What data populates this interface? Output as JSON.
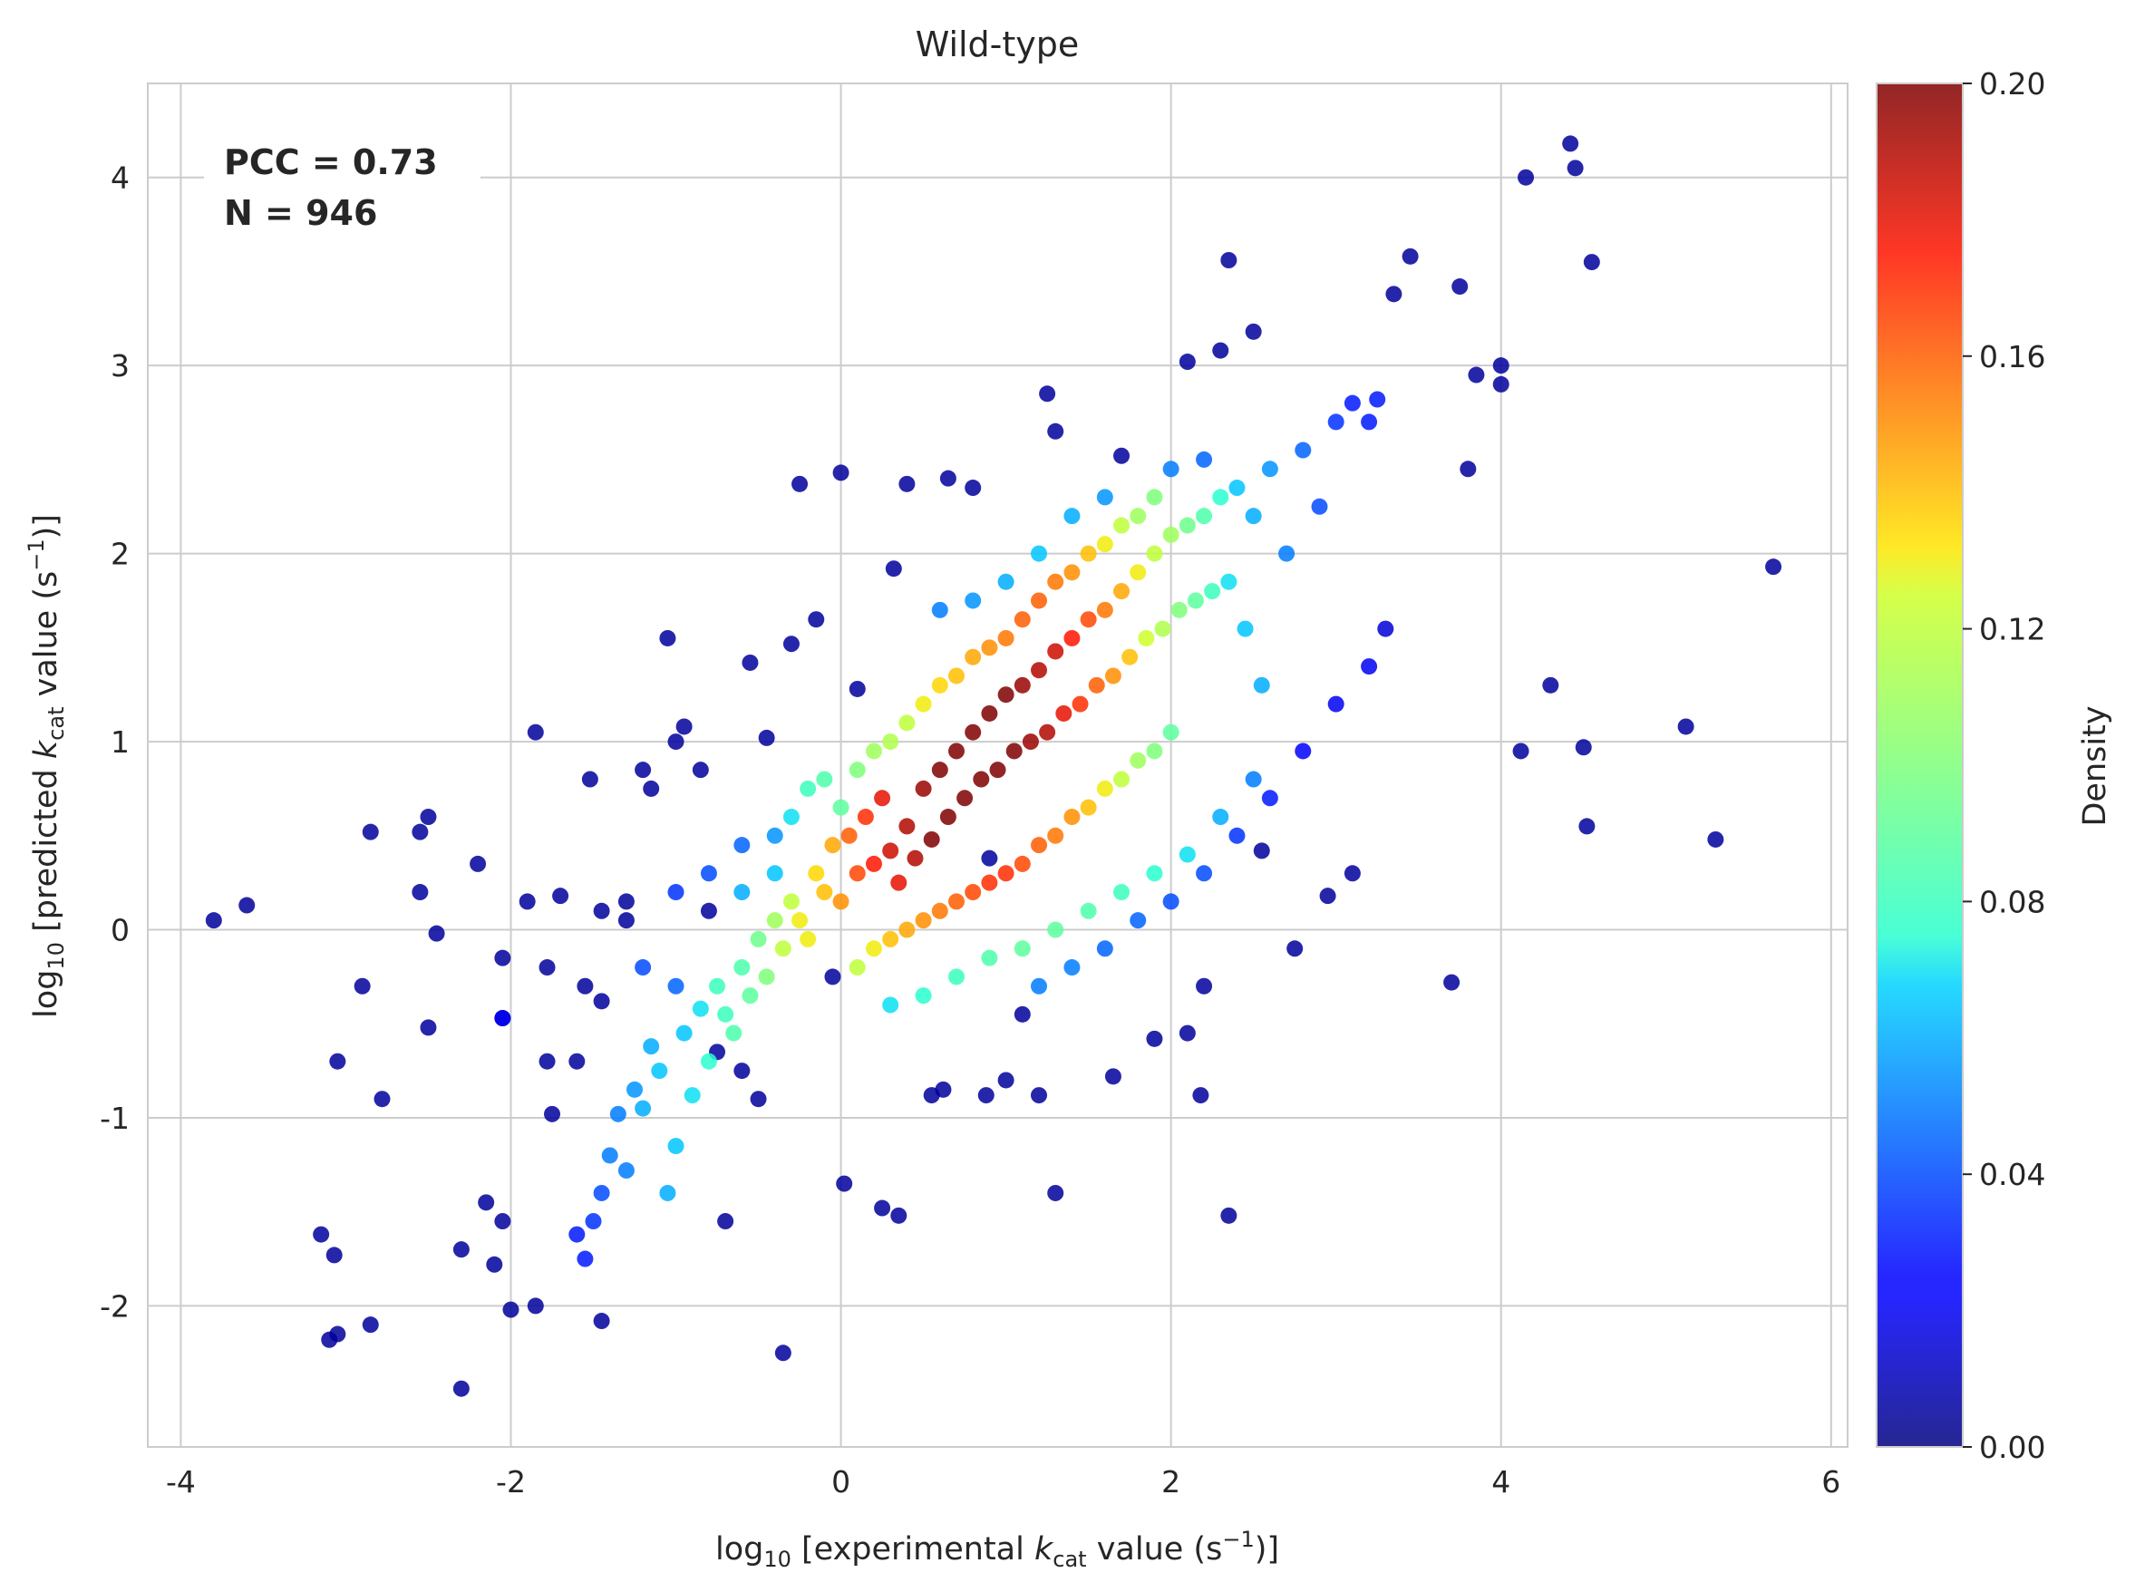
{
  "chart_data": {
    "type": "scatter",
    "title": "Wild-type",
    "xlabel": {
      "prefix": "log",
      "sub": "10",
      "main": " [experimental ",
      "k": "k",
      "ksub": "cat",
      "unit": " value (s",
      "sup": "−1",
      "close": ")]"
    },
    "ylabel": {
      "prefix": "log",
      "sub": "10",
      "main": " [predicted ",
      "k": "k",
      "ksub": "cat",
      "unit": " value (s",
      "sup": "−1",
      "close": ")]"
    },
    "xlim": [
      -4.2,
      6.1
    ],
    "ylim": [
      -2.75,
      4.5
    ],
    "xticks": [
      -4,
      -2,
      0,
      2,
      4,
      6
    ],
    "xtick_labels": [
      "-4",
      "-2",
      "0",
      "2",
      "4",
      "6"
    ],
    "yticks": [
      -2,
      -1,
      0,
      1,
      2,
      3,
      4
    ],
    "ytick_labels": [
      "-2",
      "-1",
      "0",
      "1",
      "2",
      "3",
      "4"
    ],
    "grid": true,
    "annotations": {
      "pcc": "PCC = 0.73",
      "n": "N = 946"
    },
    "colorbar": {
      "label": "Density",
      "min": 0.0,
      "max": 0.2,
      "ticks": [
        "0.00",
        "0.04",
        "0.08",
        "0.12",
        "0.16",
        "0.20"
      ],
      "colormap": "jet"
    },
    "points": [
      [
        -3.8,
        0.05,
        0.005
      ],
      [
        -3.6,
        0.13,
        0.005
      ],
      [
        -3.15,
        -1.62,
        0.005
      ],
      [
        -3.1,
        -2.18,
        0.005
      ],
      [
        -3.07,
        -1.73,
        0.005
      ],
      [
        -3.05,
        -2.15,
        0.005
      ],
      [
        -3.05,
        -0.7,
        0.005
      ],
      [
        -2.9,
        -0.3,
        0.005
      ],
      [
        -2.85,
        0.52,
        0.005
      ],
      [
        -2.85,
        -2.1,
        0.005
      ],
      [
        -2.78,
        -0.9,
        0.005
      ],
      [
        -2.55,
        0.52,
        0.005
      ],
      [
        -2.55,
        0.2,
        0.005
      ],
      [
        -2.5,
        -0.52,
        0.005
      ],
      [
        -2.5,
        0.6,
        0.005
      ],
      [
        -2.45,
        -0.02,
        0.005
      ],
      [
        -2.3,
        -2.44,
        0.005
      ],
      [
        -2.3,
        -1.7,
        0.005
      ],
      [
        -2.2,
        0.35,
        0.005
      ],
      [
        -2.15,
        -1.45,
        0.005
      ],
      [
        -2.1,
        -1.78,
        0.005
      ],
      [
        -2.05,
        -0.47,
        0.005
      ],
      [
        -2.05,
        -1.55,
        0.005
      ],
      [
        -2.05,
        -0.15,
        0.005
      ],
      [
        -2.0,
        -2.02,
        0.005
      ],
      [
        -1.9,
        0.15,
        0.005
      ],
      [
        -1.85,
        1.05,
        0.005
      ],
      [
        -1.85,
        -2.0,
        0.005
      ],
      [
        -1.78,
        -0.7,
        0.005
      ],
      [
        -1.78,
        -0.2,
        0.005
      ],
      [
        -1.75,
        -0.98,
        0.005
      ],
      [
        -1.7,
        0.18,
        0.005
      ],
      [
        -1.6,
        -0.7,
        0.005
      ],
      [
        -1.55,
        -0.3,
        0.005
      ],
      [
        -1.52,
        0.8,
        0.005
      ],
      [
        -1.45,
        -0.38,
        0.005
      ],
      [
        -1.45,
        -2.08,
        0.005
      ],
      [
        -1.45,
        0.1,
        0.005
      ],
      [
        -1.3,
        0.15,
        0.005
      ],
      [
        -1.3,
        0.05,
        0.005
      ],
      [
        -1.2,
        0.85,
        0.005
      ],
      [
        -1.15,
        0.75,
        0.005
      ],
      [
        -1.05,
        1.55,
        0.005
      ],
      [
        -1.0,
        1.0,
        0.005
      ],
      [
        -0.95,
        1.08,
        0.005
      ],
      [
        -0.85,
        0.85,
        0.005
      ],
      [
        -0.8,
        0.1,
        0.005
      ],
      [
        -0.75,
        -0.65,
        0.005
      ],
      [
        -0.7,
        -1.55,
        0.005
      ],
      [
        -0.6,
        -0.75,
        0.005
      ],
      [
        -0.55,
        1.42,
        0.005
      ],
      [
        -0.5,
        -0.9,
        0.005
      ],
      [
        -0.45,
        1.02,
        0.005
      ],
      [
        -0.35,
        -2.25,
        0.005
      ],
      [
        -0.3,
        1.52,
        0.005
      ],
      [
        -0.25,
        2.37,
        0.005
      ],
      [
        -0.15,
        1.65,
        0.005
      ],
      [
        -0.05,
        -0.25,
        0.005
      ],
      [
        0.0,
        2.43,
        0.005
      ],
      [
        0.02,
        -1.35,
        0.005
      ],
      [
        0.1,
        1.28,
        0.005
      ],
      [
        0.25,
        -1.48,
        0.005
      ],
      [
        0.32,
        1.92,
        0.005
      ],
      [
        0.35,
        -1.52,
        0.005
      ],
      [
        0.4,
        2.37,
        0.005
      ],
      [
        0.55,
        -0.88,
        0.005
      ],
      [
        0.62,
        -0.85,
        0.005
      ],
      [
        0.65,
        2.4,
        0.005
      ],
      [
        0.8,
        2.35,
        0.005
      ],
      [
        0.88,
        -0.88,
        0.005
      ],
      [
        0.9,
        0.38,
        0.005
      ],
      [
        1.0,
        -0.8,
        0.005
      ],
      [
        1.1,
        -0.45,
        0.005
      ],
      [
        1.2,
        -0.88,
        0.005
      ],
      [
        1.25,
        2.85,
        0.005
      ],
      [
        1.3,
        -1.4,
        0.005
      ],
      [
        1.3,
        2.65,
        0.005
      ],
      [
        1.65,
        -0.78,
        0.005
      ],
      [
        1.7,
        2.52,
        0.005
      ],
      [
        1.9,
        -0.58,
        0.005
      ],
      [
        2.1,
        3.02,
        0.005
      ],
      [
        2.1,
        -0.55,
        0.005
      ],
      [
        2.18,
        -0.88,
        0.005
      ],
      [
        2.2,
        -0.3,
        0.005
      ],
      [
        2.3,
        3.08,
        0.005
      ],
      [
        2.35,
        3.56,
        0.005
      ],
      [
        2.35,
        -1.52,
        0.005
      ],
      [
        2.5,
        3.18,
        0.005
      ],
      [
        2.55,
        0.42,
        0.005
      ],
      [
        2.75,
        -0.1,
        0.005
      ],
      [
        2.95,
        0.18,
        0.005
      ],
      [
        3.1,
        0.3,
        0.005
      ],
      [
        3.35,
        3.38,
        0.005
      ],
      [
        3.45,
        3.58,
        0.005
      ],
      [
        3.7,
        -0.28,
        0.005
      ],
      [
        3.75,
        3.42,
        0.005
      ],
      [
        3.8,
        2.45,
        0.005
      ],
      [
        3.85,
        2.95,
        0.005
      ],
      [
        4.0,
        3.0,
        0.005
      ],
      [
        4.0,
        2.9,
        0.005
      ],
      [
        4.12,
        0.95,
        0.005
      ],
      [
        4.15,
        4.0,
        0.005
      ],
      [
        4.3,
        1.3,
        0.005
      ],
      [
        4.42,
        4.18,
        0.005
      ],
      [
        4.45,
        4.05,
        0.005
      ],
      [
        4.5,
        0.97,
        0.005
      ],
      [
        4.52,
        0.55,
        0.005
      ],
      [
        4.55,
        3.55,
        0.005
      ],
      [
        5.12,
        1.08,
        0.005
      ],
      [
        5.3,
        0.48,
        0.005
      ],
      [
        5.65,
        1.93,
        0.005
      ],
      [
        -2.05,
        -0.47,
        0.02
      ],
      [
        -1.6,
        -1.62,
        0.03
      ],
      [
        -1.55,
        -1.75,
        0.03
      ],
      [
        -1.5,
        -1.55,
        0.035
      ],
      [
        -1.45,
        -1.4,
        0.04
      ],
      [
        -1.4,
        -1.2,
        0.05
      ],
      [
        -1.35,
        -0.98,
        0.05
      ],
      [
        -1.3,
        -1.28,
        0.05
      ],
      [
        -1.25,
        -0.85,
        0.055
      ],
      [
        -1.2,
        -0.95,
        0.06
      ],
      [
        -1.15,
        -0.62,
        0.06
      ],
      [
        -1.1,
        -0.75,
        0.065
      ],
      [
        -1.05,
        -1.4,
        0.06
      ],
      [
        -1.0,
        -1.15,
        0.065
      ],
      [
        -0.95,
        -0.55,
        0.065
      ],
      [
        -0.9,
        -0.88,
        0.07
      ],
      [
        -0.85,
        -0.42,
        0.07
      ],
      [
        -0.8,
        -0.7,
        0.075
      ],
      [
        -0.75,
        -0.3,
        0.08
      ],
      [
        -0.7,
        -0.45,
        0.08
      ],
      [
        -0.65,
        -0.55,
        0.085
      ],
      [
        -0.6,
        -0.2,
        0.085
      ],
      [
        -0.55,
        -0.35,
        0.09
      ],
      [
        -0.5,
        -0.05,
        0.095
      ],
      [
        -0.45,
        -0.25,
        0.1
      ],
      [
        -0.4,
        0.05,
        0.11
      ],
      [
        -0.35,
        -0.1,
        0.12
      ],
      [
        -0.3,
        0.15,
        0.12
      ],
      [
        -0.25,
        0.05,
        0.13
      ],
      [
        -0.2,
        -0.05,
        0.13
      ],
      [
        -0.15,
        0.3,
        0.135
      ],
      [
        -0.1,
        0.2,
        0.14
      ],
      [
        -0.05,
        0.45,
        0.145
      ],
      [
        0.0,
        0.15,
        0.15
      ],
      [
        0.05,
        0.5,
        0.16
      ],
      [
        0.1,
        0.3,
        0.165
      ],
      [
        0.15,
        0.6,
        0.17
      ],
      [
        0.2,
        0.35,
        0.175
      ],
      [
        0.25,
        0.7,
        0.18
      ],
      [
        0.3,
        0.42,
        0.185
      ],
      [
        0.35,
        0.25,
        0.18
      ],
      [
        0.4,
        0.55,
        0.19
      ],
      [
        0.45,
        0.38,
        0.19
      ],
      [
        0.5,
        0.75,
        0.195
      ],
      [
        0.55,
        0.48,
        0.2
      ],
      [
        0.6,
        0.85,
        0.2
      ],
      [
        0.65,
        0.6,
        0.2
      ],
      [
        0.7,
        0.95,
        0.2
      ],
      [
        0.75,
        0.7,
        0.2
      ],
      [
        0.8,
        1.05,
        0.2
      ],
      [
        0.85,
        0.8,
        0.2
      ],
      [
        0.9,
        1.15,
        0.2
      ],
      [
        0.95,
        0.85,
        0.2
      ],
      [
        1.0,
        1.25,
        0.2
      ],
      [
        1.05,
        0.95,
        0.2
      ],
      [
        1.1,
        1.3,
        0.195
      ],
      [
        1.15,
        1.0,
        0.195
      ],
      [
        1.2,
        1.38,
        0.19
      ],
      [
        1.25,
        1.05,
        0.19
      ],
      [
        1.3,
        1.48,
        0.185
      ],
      [
        1.35,
        1.15,
        0.18
      ],
      [
        1.4,
        1.55,
        0.175
      ],
      [
        1.45,
        1.2,
        0.17
      ],
      [
        1.5,
        1.65,
        0.165
      ],
      [
        1.55,
        1.3,
        0.16
      ],
      [
        1.6,
        1.7,
        0.155
      ],
      [
        1.65,
        1.35,
        0.15
      ],
      [
        1.7,
        1.8,
        0.145
      ],
      [
        1.75,
        1.45,
        0.14
      ],
      [
        1.8,
        1.9,
        0.13
      ],
      [
        1.85,
        1.55,
        0.125
      ],
      [
        1.9,
        2.0,
        0.12
      ],
      [
        1.95,
        1.6,
        0.115
      ],
      [
        2.0,
        2.1,
        0.11
      ],
      [
        2.05,
        1.7,
        0.1
      ],
      [
        2.1,
        2.15,
        0.095
      ],
      [
        2.15,
        1.75,
        0.09
      ],
      [
        2.2,
        2.2,
        0.085
      ],
      [
        2.25,
        1.8,
        0.08
      ],
      [
        2.3,
        2.3,
        0.075
      ],
      [
        2.35,
        1.85,
        0.07
      ],
      [
        2.4,
        2.35,
        0.065
      ],
      [
        2.45,
        1.6,
        0.065
      ],
      [
        2.5,
        2.2,
        0.06
      ],
      [
        2.55,
        1.3,
        0.06
      ],
      [
        2.6,
        2.45,
        0.055
      ],
      [
        2.7,
        2.0,
        0.05
      ],
      [
        2.8,
        2.55,
        0.045
      ],
      [
        2.9,
        2.25,
        0.04
      ],
      [
        3.0,
        2.7,
        0.035
      ],
      [
        3.1,
        2.8,
        0.03
      ],
      [
        3.2,
        2.7,
        0.03
      ],
      [
        3.25,
        2.82,
        0.03
      ],
      [
        -0.3,
        0.6,
        0.07
      ],
      [
        -0.2,
        0.75,
        0.08
      ],
      [
        -0.1,
        0.8,
        0.085
      ],
      [
        0.0,
        0.65,
        0.09
      ],
      [
        0.1,
        0.85,
        0.1
      ],
      [
        0.2,
        0.95,
        0.11
      ],
      [
        0.3,
        1.0,
        0.115
      ],
      [
        0.4,
        1.1,
        0.12
      ],
      [
        0.5,
        1.2,
        0.13
      ],
      [
        0.6,
        1.3,
        0.135
      ],
      [
        0.7,
        1.35,
        0.14
      ],
      [
        0.8,
        1.45,
        0.145
      ],
      [
        0.9,
        1.5,
        0.15
      ],
      [
        1.0,
        1.55,
        0.155
      ],
      [
        1.1,
        1.65,
        0.16
      ],
      [
        1.2,
        1.75,
        0.16
      ],
      [
        1.3,
        1.85,
        0.155
      ],
      [
        1.4,
        1.9,
        0.15
      ],
      [
        1.5,
        2.0,
        0.14
      ],
      [
        1.6,
        2.05,
        0.13
      ],
      [
        1.7,
        2.15,
        0.12
      ],
      [
        1.8,
        2.2,
        0.11
      ],
      [
        1.9,
        2.3,
        0.1
      ],
      [
        0.1,
        -0.2,
        0.12
      ],
      [
        0.2,
        -0.1,
        0.13
      ],
      [
        0.3,
        -0.05,
        0.14
      ],
      [
        0.4,
        0.0,
        0.145
      ],
      [
        0.5,
        0.05,
        0.15
      ],
      [
        0.6,
        0.1,
        0.155
      ],
      [
        0.7,
        0.15,
        0.16
      ],
      [
        0.8,
        0.2,
        0.165
      ],
      [
        0.9,
        0.25,
        0.17
      ],
      [
        1.0,
        0.3,
        0.17
      ],
      [
        1.1,
        0.35,
        0.165
      ],
      [
        1.2,
        0.45,
        0.16
      ],
      [
        1.3,
        0.5,
        0.155
      ],
      [
        1.4,
        0.6,
        0.15
      ],
      [
        1.5,
        0.65,
        0.14
      ],
      [
        1.6,
        0.75,
        0.13
      ],
      [
        1.7,
        0.8,
        0.12
      ],
      [
        1.8,
        0.9,
        0.11
      ],
      [
        1.9,
        0.95,
        0.1
      ],
      [
        2.0,
        1.05,
        0.09
      ],
      [
        0.3,
        -0.4,
        0.07
      ],
      [
        0.5,
        -0.35,
        0.075
      ],
      [
        0.7,
        -0.25,
        0.08
      ],
      [
        0.9,
        -0.15,
        0.085
      ],
      [
        1.1,
        -0.1,
        0.09
      ],
      [
        1.3,
        0.0,
        0.09
      ],
      [
        1.5,
        0.1,
        0.085
      ],
      [
        1.7,
        0.2,
        0.08
      ],
      [
        1.9,
        0.3,
        0.075
      ],
      [
        2.1,
        0.4,
        0.07
      ],
      [
        2.3,
        0.6,
        0.06
      ],
      [
        2.5,
        0.8,
        0.05
      ],
      [
        -0.4,
        0.5,
        0.055
      ],
      [
        -0.6,
        0.45,
        0.045
      ],
      [
        -0.8,
        0.3,
        0.04
      ],
      [
        -1.0,
        0.2,
        0.035
      ],
      [
        -1.2,
        -0.2,
        0.04
      ],
      [
        -1.0,
        -0.3,
        0.045
      ],
      [
        -0.6,
        0.2,
        0.06
      ],
      [
        -0.4,
        0.3,
        0.065
      ],
      [
        0.6,
        1.7,
        0.05
      ],
      [
        0.8,
        1.75,
        0.055
      ],
      [
        1.0,
        1.85,
        0.06
      ],
      [
        1.2,
        2.0,
        0.065
      ],
      [
        1.4,
        2.2,
        0.06
      ],
      [
        1.6,
        2.3,
        0.055
      ],
      [
        2.0,
        2.45,
        0.05
      ],
      [
        2.2,
        2.5,
        0.045
      ],
      [
        1.2,
        -0.3,
        0.05
      ],
      [
        1.4,
        -0.2,
        0.05
      ],
      [
        1.6,
        -0.1,
        0.045
      ],
      [
        1.8,
        0.05,
        0.045
      ],
      [
        2.0,
        0.15,
        0.04
      ],
      [
        2.2,
        0.3,
        0.04
      ],
      [
        2.4,
        0.5,
        0.035
      ],
      [
        2.6,
        0.7,
        0.03
      ],
      [
        2.8,
        0.95,
        0.025
      ],
      [
        3.0,
        1.2,
        0.02
      ],
      [
        3.2,
        1.4,
        0.02
      ],
      [
        3.3,
        1.6,
        0.015
      ]
    ]
  }
}
